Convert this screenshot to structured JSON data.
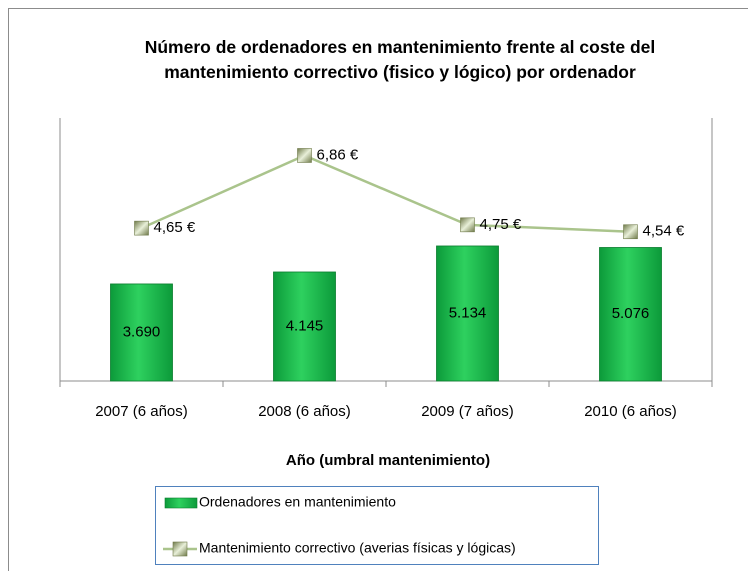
{
  "chart_data": {
    "type": "bar",
    "title": "Número de ordenadores en mantenimiento frente al coste del mantenimiento correctivo  (fisico y lógico) por ordenador",
    "x_label": "Año (umbral mantenimiento)",
    "categories": [
      "2007 (6 años)",
      "2008 (6 años)",
      "2009 (7 años)",
      "2010 (6 años)"
    ],
    "series": [
      {
        "name": "Ordenadores en mantenimiento",
        "type": "bar",
        "color": "#19b24a",
        "values": [
          3690,
          4145,
          5134,
          5076
        ],
        "value_labels": [
          "3.690",
          "4.145",
          "5.134",
          "5.076"
        ]
      },
      {
        "name": "Mantenimiento correctivo  (averias físicas y lógicas)",
        "type": "line",
        "axis": "y2",
        "color": "#aac48c",
        "values": [
          4.65,
          6.86,
          4.75,
          4.54
        ],
        "value_labels": [
          "4,65 €",
          "6,86 €",
          "4,75 €",
          "4,54 €"
        ]
      }
    ],
    "ylim": [
      0,
      10000
    ],
    "y2lim": [
      0,
      8
    ],
    "grid": false
  }
}
